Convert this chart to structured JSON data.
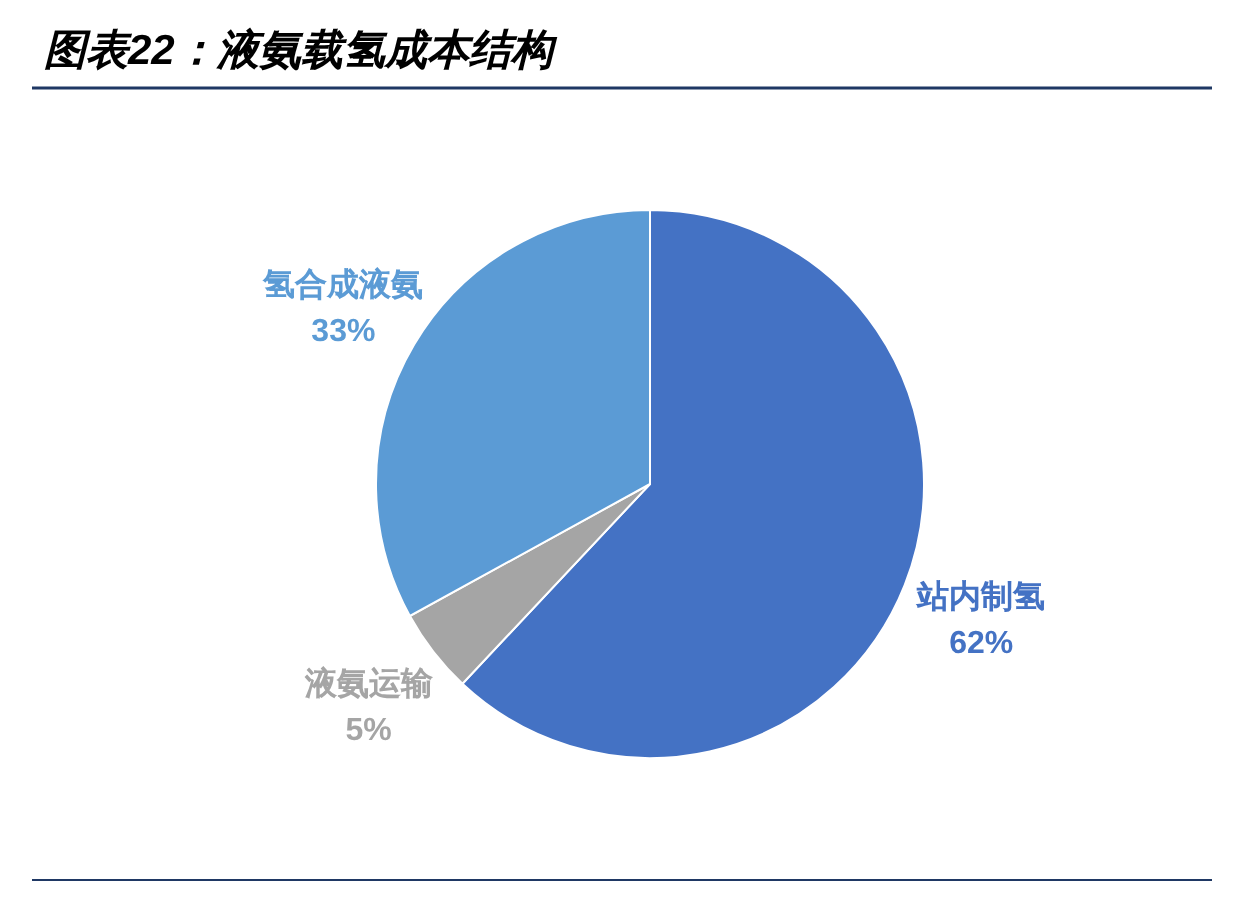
{
  "chart_data": {
    "type": "pie",
    "title": "图表22：液氨载氢成本结构",
    "categories": [
      "站内制氢",
      "液氨运输",
      "氢合成液氨"
    ],
    "values": [
      62,
      5,
      33
    ],
    "colors": [
      "#4472c4",
      "#a5a5a5",
      "#5b9bd5"
    ],
    "value_labels": [
      "62%",
      "5%",
      "33%"
    ]
  }
}
